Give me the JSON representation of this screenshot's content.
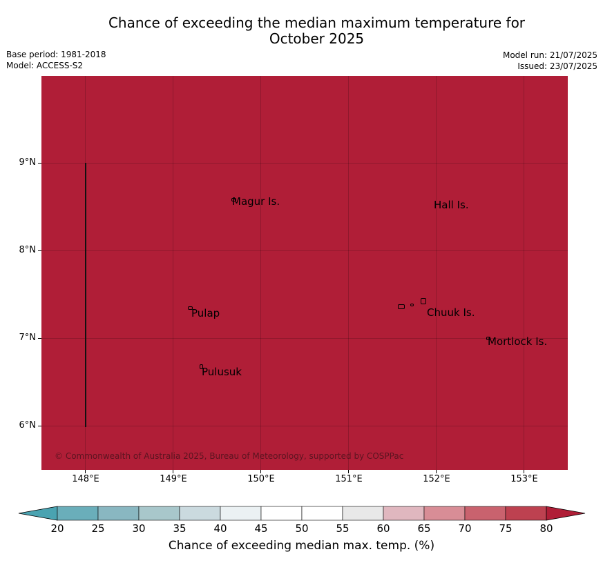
{
  "header": {
    "title_line1": "Chance of exceeding the median maximum temperature for",
    "title_line2": "October 2025",
    "base_period": "Base period: 1981-2018",
    "model": "Model: ACCESS-S2",
    "model_run": "Model run: 21/07/2025",
    "issued": "Issued: 23/07/2025"
  },
  "map": {
    "fill_color": "#b01e37",
    "fill_category": ">80",
    "lat_labels": [
      "9°N",
      "8°N",
      "7°N",
      "6°N"
    ],
    "lon_labels": [
      "148°E",
      "149°E",
      "150°E",
      "151°E",
      "152°E",
      "153°E"
    ],
    "islands": [
      {
        "name": "Magur Is."
      },
      {
        "name": "Hall Is."
      },
      {
        "name": "Pulap"
      },
      {
        "name": "Chuuk Is."
      },
      {
        "name": "Mortlock Is."
      },
      {
        "name": "Pulusuk"
      }
    ],
    "copyright": "© Commonwealth of Australia 2025, Bureau of Meteorology, supported by COSPPac"
  },
  "colorbar": {
    "title": "Chance of exceeding median max. temp. (%)",
    "ticks": [
      "20",
      "25",
      "30",
      "35",
      "40",
      "45",
      "50",
      "55",
      "60",
      "65",
      "70",
      "75",
      "80"
    ],
    "colors": [
      "#6aaeba",
      "#89b7c1",
      "#a8c7cb",
      "#cbdadf",
      "#ebf1f3",
      "#ffffff",
      "#ffffff",
      "#e8e8e8",
      "#e0b7bf",
      "#d88d96",
      "#c9626e",
      "#bd4150"
    ],
    "under_color": "#4aa3b1",
    "over_color": "#b01e37"
  }
}
